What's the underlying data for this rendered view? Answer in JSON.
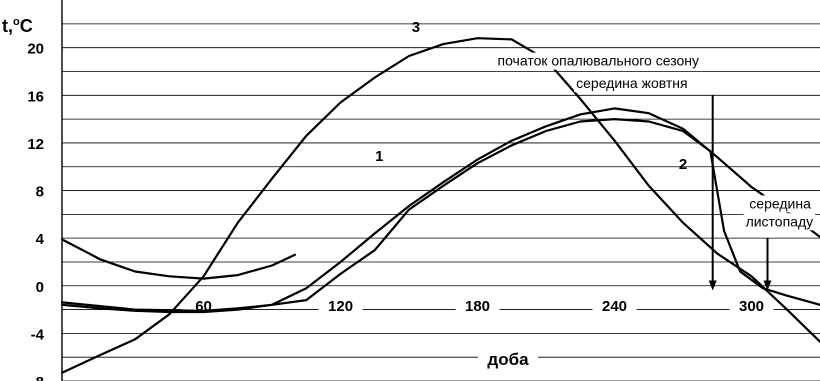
{
  "chart_data": {
    "type": "line",
    "ylabel_main": "t,",
    "ylabel_sup": "o",
    "ylabel_unit": "C",
    "xlabel": "доба",
    "xlim": [
      -2,
      330
    ],
    "ylim": [
      -8,
      23
    ],
    "y_ticks": [
      20,
      16,
      12,
      8,
      4,
      0,
      -4,
      -8
    ],
    "x_ticks": [
      60,
      120,
      180,
      240,
      300
    ],
    "grid": "horizontal",
    "series": [
      {
        "name": "1",
        "x": [
          -2,
          15,
          30,
          45,
          60,
          75,
          90,
          105,
          120,
          135,
          150,
          165,
          180,
          195,
          210,
          225,
          240,
          255,
          270,
          285,
          300,
          315,
          330
        ],
        "y": [
          -1.6,
          -1.9,
          -2.1,
          -2.2,
          -2.2,
          -2.0,
          -1.6,
          -0.2,
          2.0,
          4.4,
          6.7,
          8.7,
          10.6,
          12.2,
          13.4,
          14.4,
          14.9,
          14.5,
          13.2,
          10.8,
          8.3,
          6.3,
          4.1
        ]
      },
      {
        "name": "2",
        "x": [
          -2,
          30,
          60,
          75,
          90,
          105,
          120,
          135,
          150,
          165,
          180,
          195,
          210,
          225,
          240,
          255,
          270,
          282,
          288,
          295,
          305,
          315,
          330
        ],
        "y": [
          -1.4,
          -2.0,
          -2.1,
          -1.9,
          -1.6,
          -1.2,
          1.0,
          3.0,
          6.4,
          8.4,
          10.3,
          11.8,
          13.0,
          13.8,
          14.0,
          13.8,
          13.0,
          11.3,
          4.6,
          1.2,
          -0.2,
          -0.8,
          -1.6
        ]
      },
      {
        "name": "3",
        "x": [
          -2,
          15,
          30,
          45,
          60,
          75,
          90,
          105,
          120,
          135,
          150,
          165,
          180,
          195,
          210,
          225,
          240,
          255,
          270,
          285,
          300,
          315,
          330
        ],
        "y": [
          -7.3,
          -5.8,
          -4.5,
          -2.4,
          0.8,
          5.3,
          9.0,
          12.6,
          15.4,
          17.5,
          19.3,
          20.3,
          20.8,
          20.7,
          19.0,
          15.7,
          12.2,
          8.4,
          5.3,
          2.7,
          0.8,
          -1.9,
          -4.7
        ]
      },
      {
        "name": "heating-curve",
        "x": [
          -2,
          15,
          30,
          45,
          60,
          75,
          90,
          100
        ],
        "y": [
          3.9,
          2.2,
          1.2,
          0.8,
          0.6,
          0.9,
          1.7,
          2.6
        ]
      }
    ],
    "curve_labels": [
      {
        "text": "1",
        "x": 137,
        "y": 10.5
      },
      {
        "text": "2",
        "x": 270,
        "y": 9.8
      },
      {
        "text": "3",
        "x": 153,
        "y": 21.3
      }
    ],
    "annotations": [
      {
        "text": "початок опалювального сезону",
        "x": 277,
        "y": 18.5
      },
      {
        "text": "середина жовтня",
        "x": 272,
        "y": 16.6
      },
      {
        "text": "середина",
        "x": 326,
        "y": 6.5
      },
      {
        "text": "листопаду",
        "x": 327,
        "y": 5.0
      }
    ],
    "arrows": [
      {
        "x": 283,
        "from": 16.0,
        "to": -0.4
      },
      {
        "x": 307,
        "from": 4.0,
        "to": -0.4
      }
    ]
  }
}
